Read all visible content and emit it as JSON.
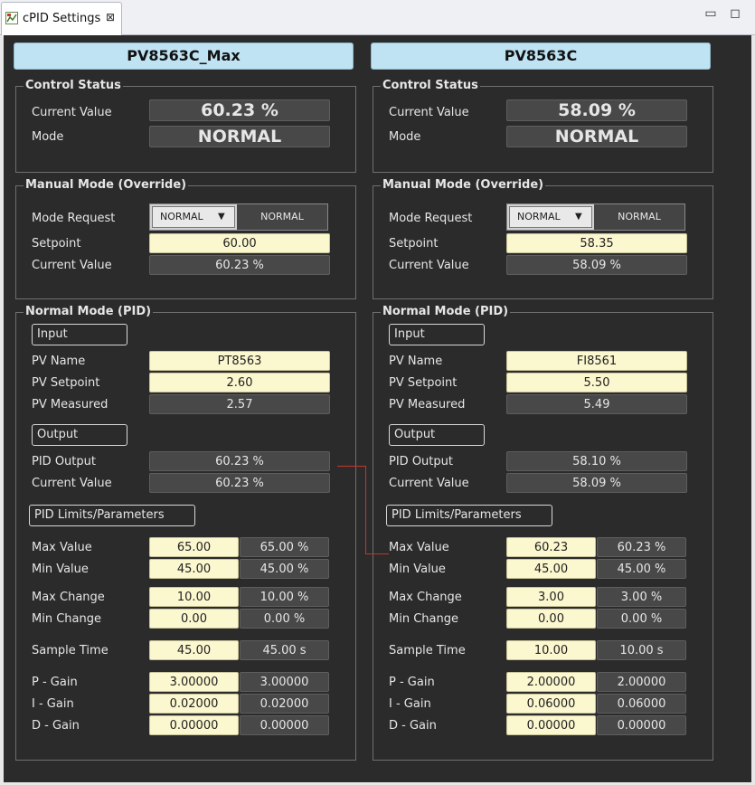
{
  "tab": {
    "title": "cPID Settings",
    "close": "⊠"
  },
  "window": {
    "minimize": "▭",
    "maximize": "◻"
  },
  "panels": [
    {
      "title": "PV8563C_Max",
      "control_status": {
        "heading": "Control Status",
        "current_value_label": "Current Value",
        "current_value": "60.23 %",
        "mode_label": "Mode",
        "mode": "NORMAL"
      },
      "manual": {
        "heading": "Manual Mode (Override)",
        "mode_request_label": "Mode Request",
        "mode_request_selected": "NORMAL",
        "mode_request_status": "NORMAL",
        "setpoint_label": "Setpoint",
        "setpoint": "60.00",
        "current_value_label": "Current Value",
        "current_value": "60.23 %"
      },
      "normal": {
        "heading": "Normal Mode (PID)",
        "input_heading": "Input",
        "pv_name_label": "PV Name",
        "pv_name": "PT8563",
        "pv_setpoint_label": "PV Setpoint",
        "pv_setpoint": "2.60",
        "pv_measured_label": "PV Measured",
        "pv_measured": "2.57",
        "output_heading": "Output",
        "pid_output_label": "PID Output",
        "pid_output": "60.23 %",
        "current_value_label": "Current Value",
        "current_value": "60.23 %",
        "limits_heading": "PID Limits/Parameters",
        "max_value_label": "Max Value",
        "max_value": "65.00",
        "max_value_ro": "65.00 %",
        "min_value_label": "Min Value",
        "min_value": "45.00",
        "min_value_ro": "45.00 %",
        "max_change_label": "Max Change",
        "max_change": "10.00",
        "max_change_ro": "10.00 %",
        "min_change_label": "Min Change",
        "min_change": "0.00",
        "min_change_ro": "0.00 %",
        "sample_time_label": "Sample Time",
        "sample_time": "45.00",
        "sample_time_ro": "45.00 s",
        "p_gain_label": "P - Gain",
        "p_gain": "3.00000",
        "p_gain_ro": "3.00000",
        "i_gain_label": "I  - Gain",
        "i_gain": "0.02000",
        "i_gain_ro": "0.02000",
        "d_gain_label": "D - Gain",
        "d_gain": "0.00000",
        "d_gain_ro": "0.00000"
      }
    },
    {
      "title": "PV8563C",
      "control_status": {
        "heading": "Control Status",
        "current_value_label": "Current Value",
        "current_value": "58.09 %",
        "mode_label": "Mode",
        "mode": "NORMAL"
      },
      "manual": {
        "heading": "Manual Mode (Override)",
        "mode_request_label": "Mode Request",
        "mode_request_selected": "NORMAL",
        "mode_request_status": "NORMAL",
        "setpoint_label": "Setpoint",
        "setpoint": "58.35",
        "current_value_label": "Current Value",
        "current_value": "58.09 %"
      },
      "normal": {
        "heading": "Normal Mode (PID)",
        "input_heading": "Input",
        "pv_name_label": "PV Name",
        "pv_name": "FI8561",
        "pv_setpoint_label": "PV Setpoint",
        "pv_setpoint": "5.50",
        "pv_measured_label": "PV Measured",
        "pv_measured": "5.49",
        "output_heading": "Output",
        "pid_output_label": "PID Output",
        "pid_output": "58.10 %",
        "current_value_label": "Current Value",
        "current_value": "58.09 %",
        "limits_heading": "PID Limits/Parameters",
        "max_value_label": "Max Value",
        "max_value": "60.23",
        "max_value_ro": "60.23 %",
        "min_value_label": "Min Value",
        "min_value": "45.00",
        "min_value_ro": "45.00 %",
        "max_change_label": "Max Change",
        "max_change": "3.00",
        "max_change_ro": "3.00 %",
        "min_change_label": "Min Change",
        "min_change": "0.00",
        "min_change_ro": "0.00 %",
        "sample_time_label": "Sample Time",
        "sample_time": "10.00",
        "sample_time_ro": "10.00 s",
        "p_gain_label": "P - Gain",
        "p_gain": "2.00000",
        "p_gain_ro": "2.00000",
        "i_gain_label": "I  - Gain",
        "i_gain": "0.06000",
        "i_gain_ro": "0.06000",
        "d_gain_label": "D - Gain",
        "d_gain": "0.00000",
        "d_gain_ro": "0.00000"
      }
    }
  ],
  "colors": {
    "background": "#2b2b2b",
    "header": "#bfe3f2",
    "editable": "#fbf7cf",
    "readonly": "#484848",
    "link": "#c0392b"
  }
}
